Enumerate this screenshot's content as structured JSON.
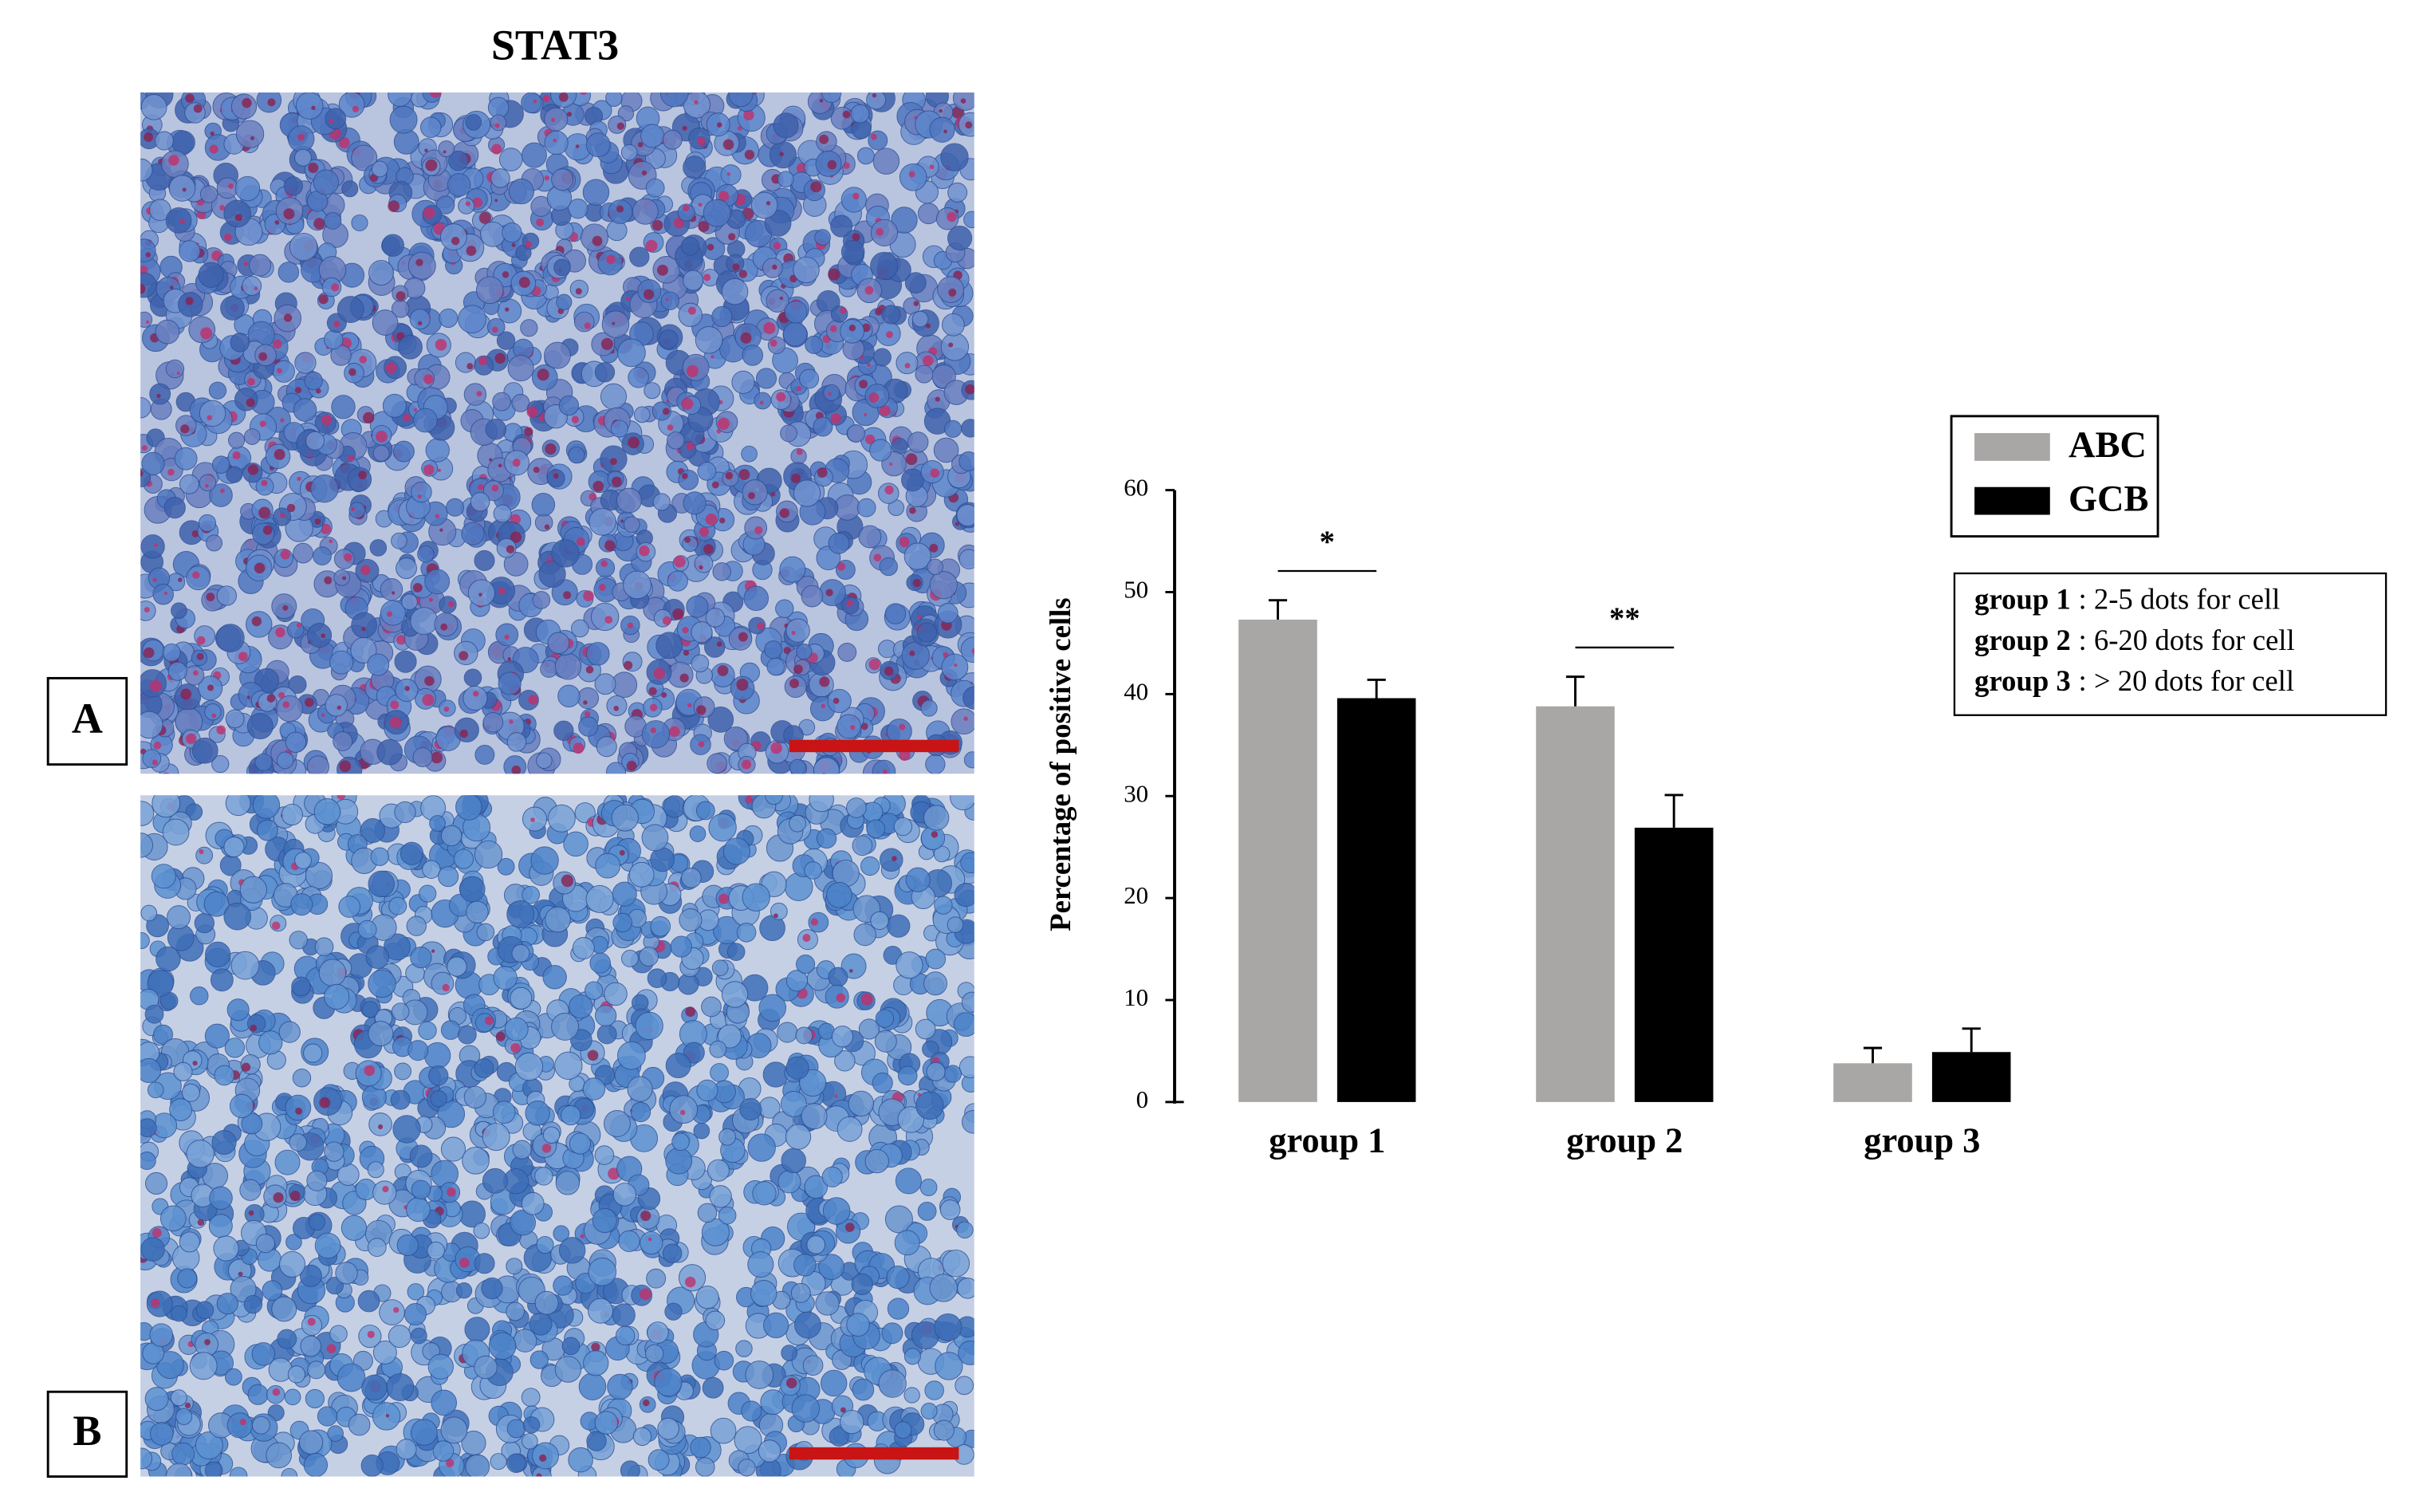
{
  "panel_title": "STAT3",
  "panel_labels": [
    "A",
    "B"
  ],
  "chart_data": {
    "type": "bar",
    "ylabel": "Percentage of positive cells",
    "categories": [
      "group 1",
      "group 2",
      "group 3"
    ],
    "series": [
      {
        "name": "ABC",
        "color": "#a9a6a6",
        "values": [
          47.3,
          38.8,
          3.8
        ],
        "errors": [
          1.9,
          2.9,
          1.5
        ]
      },
      {
        "name": "GCB",
        "color": "#000000",
        "values": [
          39.6,
          26.9,
          4.9
        ],
        "errors": [
          1.8,
          3.2,
          2.3
        ]
      }
    ],
    "significance": [
      "*",
      "**",
      null
    ],
    "ylim": [
      0,
      60
    ],
    "yticks": [
      0,
      10,
      20,
      30,
      40,
      50,
      60
    ],
    "grid": false,
    "legend": "right",
    "notes": [
      {
        "group": "group 1",
        "text": ": 2-5 dots for cell"
      },
      {
        "group": "group 2",
        "text": ": 6-20 dots for cell"
      },
      {
        "group": "group 3",
        "text": ": > 20 dots for cell"
      }
    ]
  }
}
